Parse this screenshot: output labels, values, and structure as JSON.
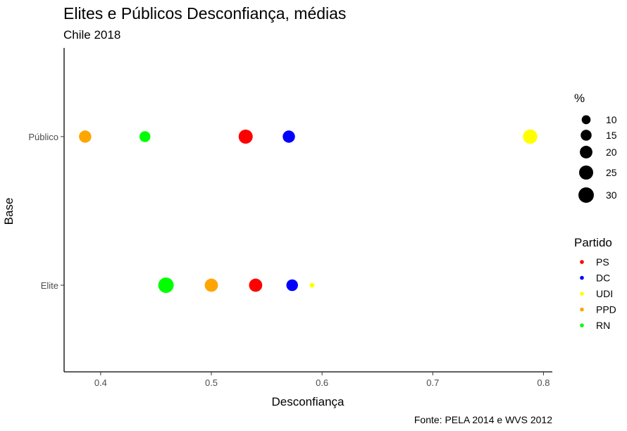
{
  "chart_data": {
    "type": "scatter",
    "title": "Elites e Públicos Desconfiança, médias",
    "subtitle": "Chile 2018",
    "xlabel": "Desconfiança",
    "ylabel": "Base",
    "caption": "Fonte: PELA 2014 e WVS 2012",
    "xlim": [
      0.367,
      0.808
    ],
    "x_ticks": [
      0.4,
      0.5,
      0.6,
      0.7,
      0.8
    ],
    "x_tick_labels": [
      "0.4",
      "0.5",
      "0.6",
      "0.7",
      "0.8"
    ],
    "categories": [
      "Elite",
      "Público"
    ],
    "grid": false,
    "size_legend": {
      "title": "%",
      "values": [
        10,
        15,
        20,
        25,
        30
      ],
      "labels": [
        "10",
        "15",
        "20",
        "25",
        "30"
      ]
    },
    "color_legend": {
      "title": "Partido",
      "placement": "right"
    },
    "series": [
      {
        "name": "PS",
        "color": "#ff0000",
        "points": [
          {
            "base": "Público",
            "x": 0.531,
            "size": 25
          },
          {
            "base": "Elite",
            "x": 0.54,
            "size": 22
          }
        ]
      },
      {
        "name": "DC",
        "color": "#0000ff",
        "points": [
          {
            "base": "Público",
            "x": 0.57,
            "size": 19
          },
          {
            "base": "Elite",
            "x": 0.573,
            "size": 17
          }
        ]
      },
      {
        "name": "UDI",
        "color": "#ffff00",
        "points": [
          {
            "base": "Público",
            "x": 0.788,
            "size": 26
          },
          {
            "base": "Elite",
            "x": 0.591,
            "size": 3
          }
        ]
      },
      {
        "name": "PPD",
        "color": "#ffa500",
        "points": [
          {
            "base": "Público",
            "x": 0.386,
            "size": 19
          },
          {
            "base": "Elite",
            "x": 0.5,
            "size": 22
          }
        ]
      },
      {
        "name": "RN",
        "color": "#00ff00",
        "points": [
          {
            "base": "Público",
            "x": 0.44,
            "size": 15
          },
          {
            "base": "Elite",
            "x": 0.459,
            "size": 30
          }
        ]
      }
    ]
  }
}
